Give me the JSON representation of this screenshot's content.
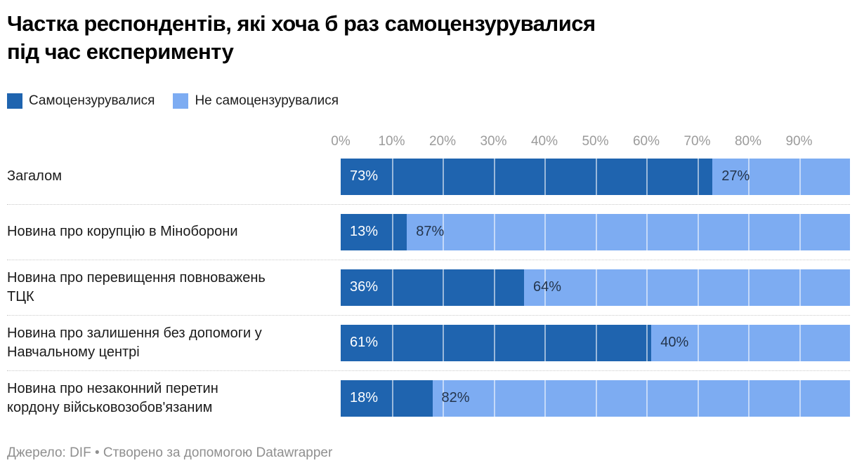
{
  "header": {
    "title": "Частка респондентів, які хоча б раз самоцензурувалися\nпід час експерименту"
  },
  "chart_data": {
    "type": "bar",
    "variant": "stacked-horizontal",
    "title": "Частка респондентів, які хоча б раз самоцензурувалися під час експерименту",
    "categories": [
      "Загалом",
      "Новина про корупцію в Міноборони",
      "Новина про перевищення повноважень\nТЦК",
      "Новина про залишення без допомоги у\nНавчальному центрі",
      "Новина про незаконний перетин\nкордону військовозобов'язаним"
    ],
    "series": [
      {
        "name": "Самоцензурувалися",
        "color": "#1f64af",
        "values": [
          73,
          13,
          36,
          61,
          18
        ],
        "labels": [
          "73%",
          "13%",
          "36%",
          "61%",
          "18%"
        ],
        "label_color": "#ffffff"
      },
      {
        "name": "Не самоцензурувалися",
        "color": "#7dacf2",
        "values": [
          27,
          87,
          64,
          40,
          82
        ],
        "labels": [
          "27%",
          "87%",
          "64%",
          "40%",
          "82%"
        ],
        "label_color": "#24354c"
      }
    ],
    "x_axis": {
      "range": [
        0,
        100
      ],
      "tick_values": [
        0,
        10,
        20,
        30,
        40,
        50,
        60,
        70,
        80,
        90
      ],
      "ticks": [
        "0%",
        "10%",
        "20%",
        "30%",
        "40%",
        "50%",
        "60%",
        "70%",
        "80%",
        "90%"
      ],
      "tick_color": "#9b9b9b"
    },
    "grid": true,
    "gridline_color": "rgba(255,255,255,0.55)",
    "legend_position": "top"
  },
  "footer": {
    "text": "Джерело: DIF • Створено за допомогою Datawrapper"
  }
}
